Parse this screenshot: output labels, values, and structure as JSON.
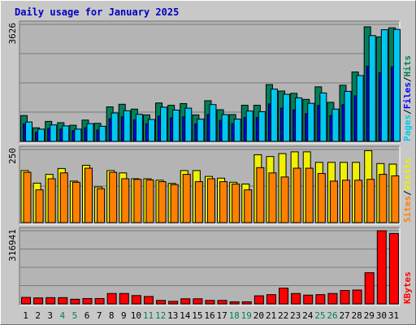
{
  "title": "Daily usage for January 2025",
  "colors": {
    "hits": "#00805c",
    "files": "#0000ff",
    "pages": "#00c8f0",
    "visits": "#f0f000",
    "sites": "#ff8000",
    "kbytes": "#ff0000",
    "weekday_label": "#000000",
    "weekend_label": "#00805c"
  },
  "chart_data": [
    {
      "type": "bar",
      "panel": "requests",
      "categories": [
        "1",
        "2",
        "3",
        "4",
        "5",
        "6",
        "7",
        "8",
        "9",
        "10",
        "11",
        "12",
        "13",
        "14",
        "15",
        "16",
        "17",
        "18",
        "19",
        "20",
        "21",
        "22",
        "23",
        "24",
        "25",
        "26",
        "27",
        "28",
        "29",
        "30",
        "31"
      ],
      "weekend_categories": [
        "4",
        "5",
        "11",
        "12",
        "18",
        "19",
        "25",
        "26"
      ],
      "ymax_label": "3626",
      "ylim": [
        0,
        3626
      ],
      "legend": [
        {
          "label": "Pages",
          "color": "#00c8f0"
        },
        {
          "sep": "/"
        },
        {
          "label": "Files",
          "color": "#0000ff"
        },
        {
          "sep": "/"
        },
        {
          "label": "Hits",
          "color": "#00805c"
        }
      ],
      "series": [
        {
          "name": "Hits",
          "values": [
            800,
            420,
            620,
            580,
            500,
            660,
            560,
            1070,
            1150,
            1000,
            820,
            1190,
            1120,
            1170,
            820,
            1260,
            980,
            830,
            1120,
            1120,
            1760,
            1560,
            1490,
            1300,
            1690,
            1210,
            1740,
            2150,
            3550,
            3240,
            3520
          ]
        },
        {
          "name": "Files",
          "values": [
            540,
            280,
            400,
            380,
            330,
            420,
            350,
            700,
            760,
            660,
            540,
            780,
            730,
            760,
            540,
            830,
            650,
            550,
            740,
            740,
            1160,
            1030,
            980,
            860,
            1110,
            800,
            1140,
            1410,
            2330,
            2130,
            2310
          ]
        },
        {
          "name": "Pages",
          "values": [
            600,
            380,
            510,
            480,
            380,
            550,
            470,
            880,
            950,
            840,
            680,
            1060,
            970,
            1030,
            690,
            1140,
            830,
            690,
            940,
            920,
            1620,
            1460,
            1350,
            1180,
            1500,
            1000,
            1550,
            2040,
            3280,
            3460,
            3470
          ]
        }
      ]
    },
    {
      "type": "bar",
      "panel": "visitors",
      "categories": [
        "1",
        "2",
        "3",
        "4",
        "5",
        "6",
        "7",
        "8",
        "9",
        "10",
        "11",
        "12",
        "13",
        "14",
        "15",
        "16",
        "17",
        "18",
        "19",
        "20",
        "21",
        "22",
        "23",
        "24",
        "25",
        "26",
        "27",
        "28",
        "29",
        "30",
        "31"
      ],
      "ymax_label": "250",
      "ylim": [
        0,
        250
      ],
      "legend": [
        {
          "label": "Sites",
          "color": "#ff8000"
        },
        {
          "sep": "/"
        },
        {
          "label": "Visits",
          "color": "#f0f000"
        }
      ],
      "series": [
        {
          "name": "Visits",
          "values": [
            178,
            135,
            165,
            185,
            142,
            196,
            122,
            178,
            170,
            150,
            150,
            145,
            134,
            178,
            178,
            158,
            152,
            138,
            132,
            232,
            226,
            236,
            242,
            242,
            206,
            206,
            206,
            206,
            246,
            202,
            200
          ]
        },
        {
          "name": "Sites",
          "values": [
            172,
            112,
            150,
            170,
            138,
            186,
            116,
            172,
            150,
            148,
            146,
            140,
            130,
            165,
            140,
            150,
            140,
            132,
            112,
            188,
            170,
            156,
            186,
            186,
            168,
            142,
            145,
            145,
            148,
            165,
            160
          ]
        }
      ]
    },
    {
      "type": "bar",
      "panel": "kbytes",
      "categories": [
        "1",
        "2",
        "3",
        "4",
        "5",
        "6",
        "7",
        "8",
        "9",
        "10",
        "11",
        "12",
        "13",
        "14",
        "15",
        "16",
        "17",
        "18",
        "19",
        "20",
        "21",
        "22",
        "23",
        "24",
        "25",
        "26",
        "27",
        "28",
        "29",
        "30",
        "31"
      ],
      "ymax_label": "316941",
      "ylim": [
        0,
        316941
      ],
      "legend": [
        {
          "label": "KBytes",
          "color": "#ff0000"
        }
      ],
      "series": [
        {
          "name": "KBytes",
          "values": [
            28000,
            26000,
            27000,
            27000,
            20000,
            23000,
            23000,
            45000,
            45000,
            36000,
            32000,
            15000,
            11000,
            22000,
            22000,
            15000,
            15000,
            9000,
            9000,
            35000,
            40000,
            68000,
            45000,
            38000,
            40000,
            45000,
            58000,
            60000,
            135000,
            316941,
            305000
          ]
        }
      ]
    }
  ]
}
